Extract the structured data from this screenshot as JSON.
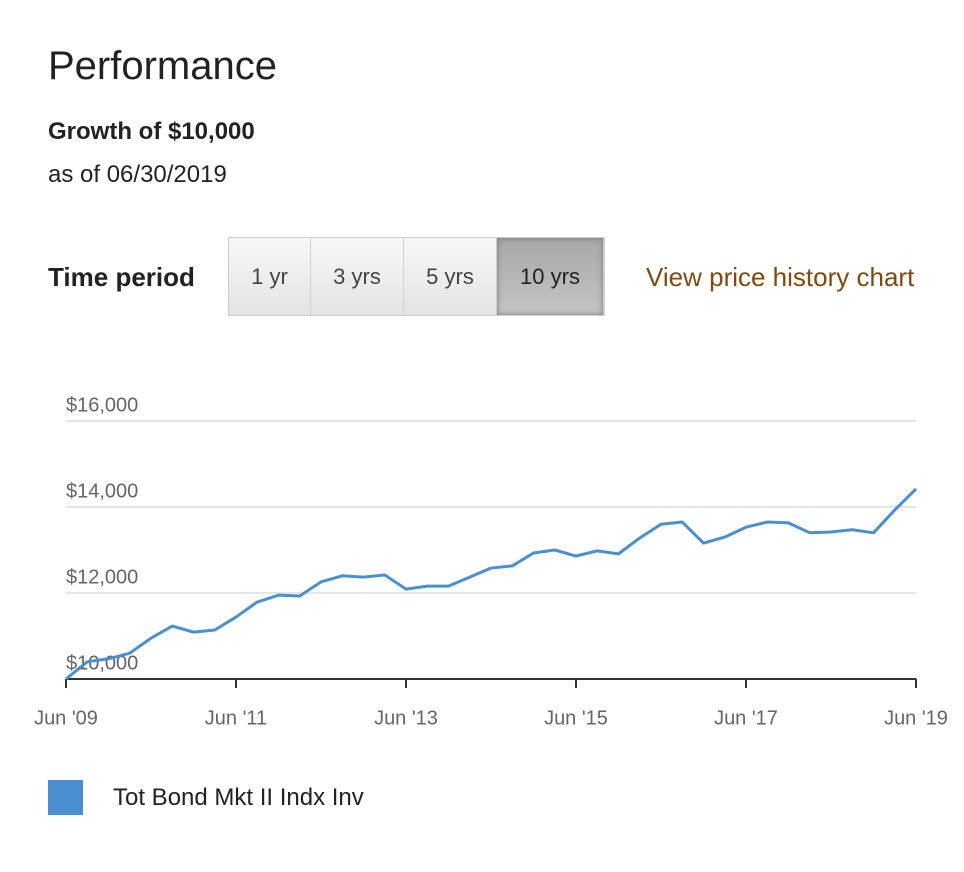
{
  "header": {
    "title": "Performance",
    "subtitle": "Growth of $10,000",
    "as_of": "as of 06/30/2019"
  },
  "controls": {
    "label": "Time period",
    "buttons": [
      {
        "label": "1 yr",
        "active": false
      },
      {
        "label": "3 yrs",
        "active": false
      },
      {
        "label": "5 yrs",
        "active": false
      },
      {
        "label": "10 yrs",
        "active": true
      }
    ],
    "link": "View price history chart"
  },
  "chart_data": {
    "type": "line",
    "x": [
      "2009-06",
      "2009-09",
      "2009-12",
      "2010-03",
      "2010-06",
      "2010-09",
      "2010-12",
      "2011-03",
      "2011-06",
      "2011-09",
      "2011-12",
      "2012-03",
      "2012-06",
      "2012-09",
      "2012-12",
      "2013-03",
      "2013-06",
      "2013-09",
      "2013-12",
      "2014-03",
      "2014-06",
      "2014-09",
      "2014-12",
      "2015-03",
      "2015-06",
      "2015-09",
      "2015-12",
      "2016-03",
      "2016-06",
      "2016-09",
      "2016-12",
      "2017-03",
      "2017-06",
      "2017-09",
      "2017-12",
      "2018-03",
      "2018-06",
      "2018-09",
      "2018-12",
      "2019-03",
      "2019-06"
    ],
    "series": [
      {
        "name": "Tot Bond Mkt II Indx Inv",
        "color": "#4a90d0",
        "values": [
          10000,
          10400,
          10470,
          10600,
          10950,
          11230,
          11090,
          11140,
          11440,
          11790,
          11950,
          11930,
          12260,
          12400,
          12370,
          12420,
          12090,
          12160,
          12160,
          12370,
          12580,
          12630,
          12930,
          13000,
          12860,
          12980,
          12910,
          13280,
          13600,
          13650,
          13160,
          13300,
          13530,
          13650,
          13630,
          13400,
          13420,
          13470,
          13400,
          13930,
          14420
        ]
      }
    ],
    "xlim": [
      "2009-06",
      "2019-06"
    ],
    "xticks": [
      {
        "value": "2009-06",
        "label": "Jun '09"
      },
      {
        "value": "2011-06",
        "label": "Jun '11"
      },
      {
        "value": "2013-06",
        "label": "Jun '13"
      },
      {
        "value": "2015-06",
        "label": "Jun '15"
      },
      {
        "value": "2017-06",
        "label": "Jun '17"
      },
      {
        "value": "2019-06",
        "label": "Jun '19"
      }
    ],
    "ylim": [
      10000,
      16000
    ],
    "yticks": [
      {
        "value": 10000,
        "label": "$10,000"
      },
      {
        "value": 12000,
        "label": "$12,000"
      },
      {
        "value": 14000,
        "label": "$14,000"
      },
      {
        "value": 16000,
        "label": "$16,000"
      }
    ],
    "grid": true
  }
}
